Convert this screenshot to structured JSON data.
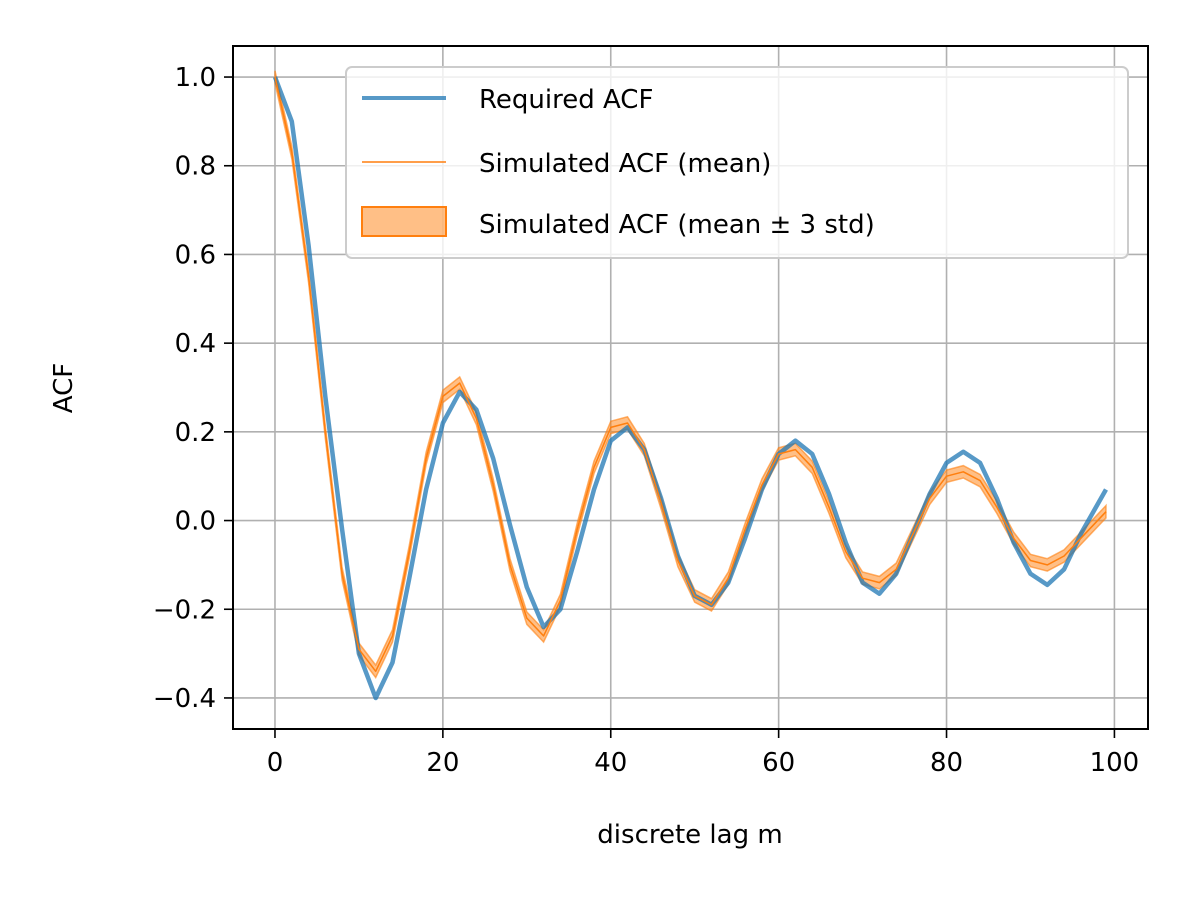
{
  "chart_data": {
    "type": "line",
    "title": "",
    "xlabel": "discrete lag m",
    "ylabel": "ACF",
    "xlim": [
      -5,
      104
    ],
    "ylim": [
      -0.47,
      1.07
    ],
    "xticks": [
      0,
      20,
      40,
      60,
      80,
      100
    ],
    "xtick_labels": [
      "0",
      "20",
      "40",
      "60",
      "80",
      "100"
    ],
    "yticks": [
      -0.4,
      -0.2,
      0.0,
      0.2,
      0.4,
      0.6,
      0.8,
      1.0
    ],
    "ytick_labels": [
      "−0.4",
      "−0.2",
      "0.0",
      "0.2",
      "0.4",
      "0.6",
      "0.8",
      "1.0"
    ],
    "grid": true,
    "legend_position": "top-right",
    "series": [
      {
        "name": "Required ACF",
        "kind": "line",
        "color": "#1f77b4",
        "x": [
          0,
          2,
          4,
          6,
          8,
          10,
          12,
          14,
          16,
          18,
          20,
          22,
          24,
          26,
          28,
          30,
          32,
          34,
          36,
          38,
          40,
          42,
          44,
          46,
          48,
          50,
          52,
          54,
          56,
          58,
          60,
          62,
          64,
          66,
          68,
          70,
          72,
          74,
          76,
          78,
          80,
          82,
          84,
          86,
          88,
          90,
          92,
          94,
          96,
          99
        ],
        "y": [
          1.0,
          0.9,
          0.62,
          0.28,
          -0.02,
          -0.3,
          -0.4,
          -0.32,
          -0.13,
          0.07,
          0.22,
          0.29,
          0.25,
          0.14,
          -0.01,
          -0.15,
          -0.24,
          -0.2,
          -0.07,
          0.07,
          0.18,
          0.21,
          0.16,
          0.05,
          -0.08,
          -0.17,
          -0.19,
          -0.14,
          -0.04,
          0.07,
          0.15,
          0.18,
          0.15,
          0.06,
          -0.05,
          -0.14,
          -0.165,
          -0.12,
          -0.03,
          0.06,
          0.13,
          0.155,
          0.13,
          0.05,
          -0.05,
          -0.12,
          -0.145,
          -0.11,
          -0.03,
          0.07
        ]
      },
      {
        "name": "Simulated ACF (mean)",
        "kind": "line",
        "color": "#ff7f0e",
        "x": [
          0,
          2,
          4,
          6,
          8,
          10,
          12,
          14,
          16,
          18,
          20,
          22,
          24,
          26,
          28,
          30,
          32,
          34,
          36,
          38,
          40,
          42,
          44,
          46,
          48,
          50,
          52,
          54,
          56,
          58,
          60,
          62,
          64,
          66,
          68,
          70,
          72,
          74,
          76,
          78,
          80,
          82,
          84,
          86,
          88,
          90,
          92,
          94,
          96,
          99
        ],
        "y": [
          1.0,
          0.83,
          0.55,
          0.2,
          -0.12,
          -0.29,
          -0.34,
          -0.26,
          -0.07,
          0.14,
          0.28,
          0.31,
          0.23,
          0.08,
          -0.1,
          -0.22,
          -0.26,
          -0.18,
          -0.02,
          0.12,
          0.21,
          0.22,
          0.16,
          0.04,
          -0.09,
          -0.17,
          -0.19,
          -0.13,
          -0.02,
          0.08,
          0.15,
          0.16,
          0.12,
          0.03,
          -0.07,
          -0.13,
          -0.14,
          -0.11,
          -0.03,
          0.05,
          0.1,
          0.11,
          0.09,
          0.03,
          -0.04,
          -0.09,
          -0.1,
          -0.08,
          -0.04,
          0.02
        ]
      },
      {
        "name": "Simulated ACF (mean ± 3 std)",
        "kind": "band",
        "color": "#ff7f0e",
        "band_halfwidth": 0.014
      }
    ]
  }
}
